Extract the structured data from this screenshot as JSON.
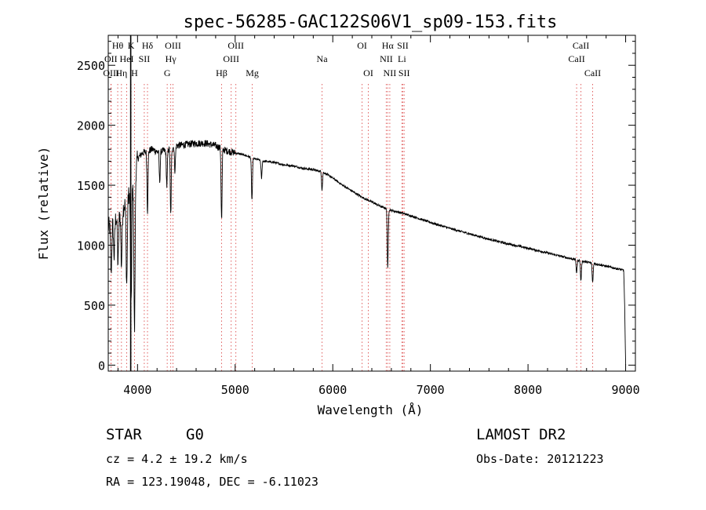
{
  "chart_data": {
    "type": "line",
    "title": "spec-56285-GAC122S06V1_sp09-153.fits",
    "xlabel": "Wavelength (Å)",
    "ylabel": "Flux (relative)",
    "xlim": [
      3700,
      9100
    ],
    "ylim": [
      -50,
      2750
    ],
    "x_ticks": [
      4000,
      5000,
      6000,
      7000,
      8000,
      9000
    ],
    "y_ticks": [
      0,
      500,
      1000,
      1500,
      2000,
      2500
    ],
    "grid": false,
    "legend": "none",
    "continuum": [
      [
        3700,
        1150
      ],
      [
        3750,
        1200
      ],
      [
        3800,
        1250
      ],
      [
        3850,
        1300
      ],
      [
        3900,
        1400
      ],
      [
        3950,
        1500
      ],
      [
        4000,
        1720
      ],
      [
        4050,
        1770
      ],
      [
        4100,
        1780
      ],
      [
        4150,
        1800
      ],
      [
        4200,
        1780
      ],
      [
        4300,
        1790
      ],
      [
        4400,
        1830
      ],
      [
        4500,
        1840
      ],
      [
        4600,
        1850
      ],
      [
        4700,
        1850
      ],
      [
        4800,
        1830
      ],
      [
        4900,
        1790
      ],
      [
        5000,
        1770
      ],
      [
        5100,
        1750
      ],
      [
        5200,
        1720
      ],
      [
        5300,
        1700
      ],
      [
        5400,
        1690
      ],
      [
        5500,
        1670
      ],
      [
        5600,
        1660
      ],
      [
        5700,
        1640
      ],
      [
        5800,
        1630
      ],
      [
        5900,
        1610
      ],
      [
        6000,
        1560
      ],
      [
        6100,
        1500
      ],
      [
        6200,
        1450
      ],
      [
        6300,
        1400
      ],
      [
        6400,
        1360
      ],
      [
        6500,
        1320
      ],
      [
        6600,
        1290
      ],
      [
        6700,
        1270
      ],
      [
        6800,
        1245
      ],
      [
        7000,
        1190
      ],
      [
        7200,
        1140
      ],
      [
        7400,
        1095
      ],
      [
        7600,
        1050
      ],
      [
        7800,
        1010
      ],
      [
        8000,
        975
      ],
      [
        8200,
        935
      ],
      [
        8400,
        895
      ],
      [
        8600,
        860
      ],
      [
        8800,
        825
      ],
      [
        8960,
        795
      ],
      [
        8980,
        790
      ],
      [
        8990,
        500
      ],
      [
        9000,
        0
      ]
    ],
    "absorption_lines": [
      [
        3730,
        400
      ],
      [
        3760,
        300
      ],
      [
        3800,
        400
      ],
      [
        3835,
        450
      ],
      [
        3889,
        700
      ],
      [
        3934,
        1000
      ],
      [
        3969,
        1300
      ],
      [
        4102,
        500
      ],
      [
        4227,
        250
      ],
      [
        4300,
        300
      ],
      [
        4340,
        550
      ],
      [
        4383,
        200
      ],
      [
        4861,
        600
      ],
      [
        5172,
        350
      ],
      [
        5270,
        150
      ],
      [
        5890,
        150
      ],
      [
        6563,
        500
      ],
      [
        8498,
        110
      ],
      [
        8542,
        170
      ],
      [
        8662,
        160
      ]
    ],
    "line_markers": [
      {
        "label": "Hθ",
        "x": 3797,
        "row": 0
      },
      {
        "label": "K",
        "x": 3934,
        "row": 0
      },
      {
        "label": "Hδ",
        "x": 4102,
        "row": 0
      },
      {
        "label": "OIII",
        "x": 4363,
        "row": 0
      },
      {
        "label": "OIII",
        "x": 5007,
        "row": 0
      },
      {
        "label": "OI",
        "x": 6300,
        "row": 0
      },
      {
        "label": "Hα",
        "x": 6563,
        "row": 0
      },
      {
        "label": "SII",
        "x": 6717,
        "row": 0
      },
      {
        "label": "CaII",
        "x": 8542,
        "row": 0
      },
      {
        "label": "OII",
        "x": 3727,
        "row": 1
      },
      {
        "label": "HeI",
        "x": 3889,
        "row": 1
      },
      {
        "label": "SII",
        "x": 4069,
        "row": 1
      },
      {
        "label": "Hγ",
        "x": 4340,
        "row": 1
      },
      {
        "label": "OIII",
        "x": 4959,
        "row": 1
      },
      {
        "label": "Na",
        "x": 5890,
        "row": 1
      },
      {
        "label": "NII",
        "x": 6548,
        "row": 1
      },
      {
        "label": "Li",
        "x": 6708,
        "row": 1
      },
      {
        "label": "CaII",
        "x": 8498,
        "row": 1
      },
      {
        "label": "OIII",
        "x": 3730,
        "row": 2
      },
      {
        "label": "Hη",
        "x": 3835,
        "row": 2
      },
      {
        "label": "H",
        "x": 3969,
        "row": 2
      },
      {
        "label": "G",
        "x": 4304,
        "row": 2
      },
      {
        "label": "Hβ",
        "x": 4861,
        "row": 2
      },
      {
        "label": "Mg",
        "x": 5175,
        "row": 2
      },
      {
        "label": "OI",
        "x": 6364,
        "row": 2
      },
      {
        "label": "NII",
        "x": 6584,
        "row": 2
      },
      {
        "label": "SII",
        "x": 6731,
        "row": 2
      },
      {
        "label": "CaII",
        "x": 8662,
        "row": 2
      }
    ],
    "solid_marker_x": 3930,
    "marker_color": "#e06060"
  },
  "info": {
    "object_class": "STAR",
    "subclass": "G0",
    "survey": "LAMOST DR2",
    "redshift": "cz = 4.2 ± 19.2 km/s",
    "obs_date": "Obs-Date: 20121223",
    "coordinates": "RA = 123.19048, DEC =  -6.11023"
  }
}
